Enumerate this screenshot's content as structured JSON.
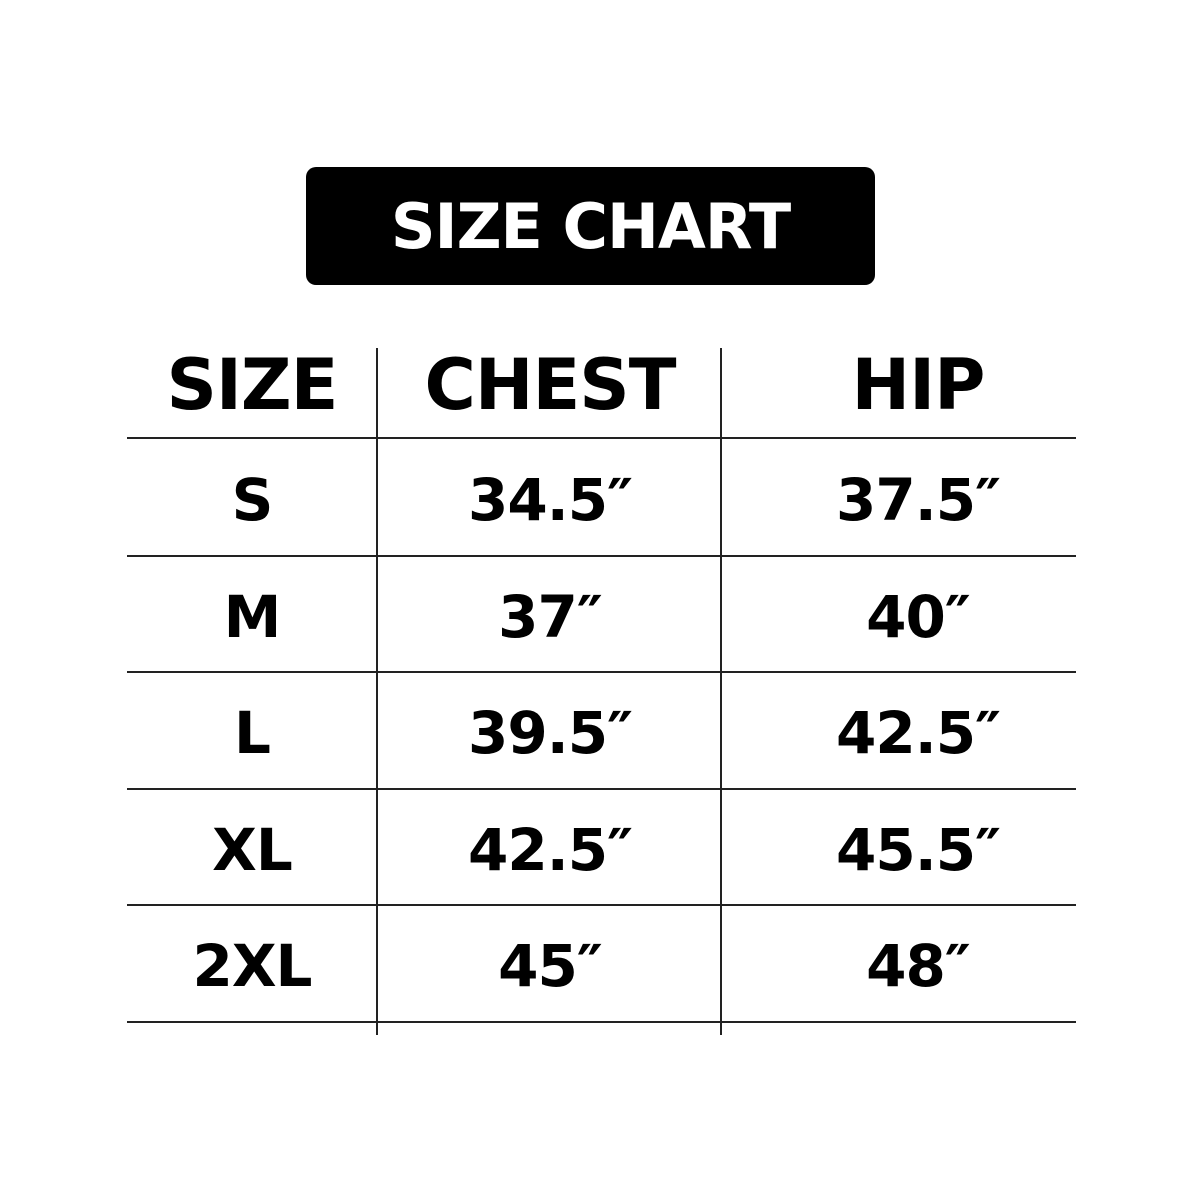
{
  "title": "SIZE CHART",
  "headers": [
    "SIZE",
    "CHEST",
    "HIP"
  ],
  "rows": [
    [
      "S",
      "34.5″",
      "37.5″"
    ],
    [
      "M",
      "37″",
      "40″"
    ],
    [
      "L",
      "39.5″",
      "42.5″"
    ],
    [
      "XL",
      "42.5″",
      "45.5″"
    ],
    [
      "2XL",
      "45″",
      "48″"
    ]
  ]
}
